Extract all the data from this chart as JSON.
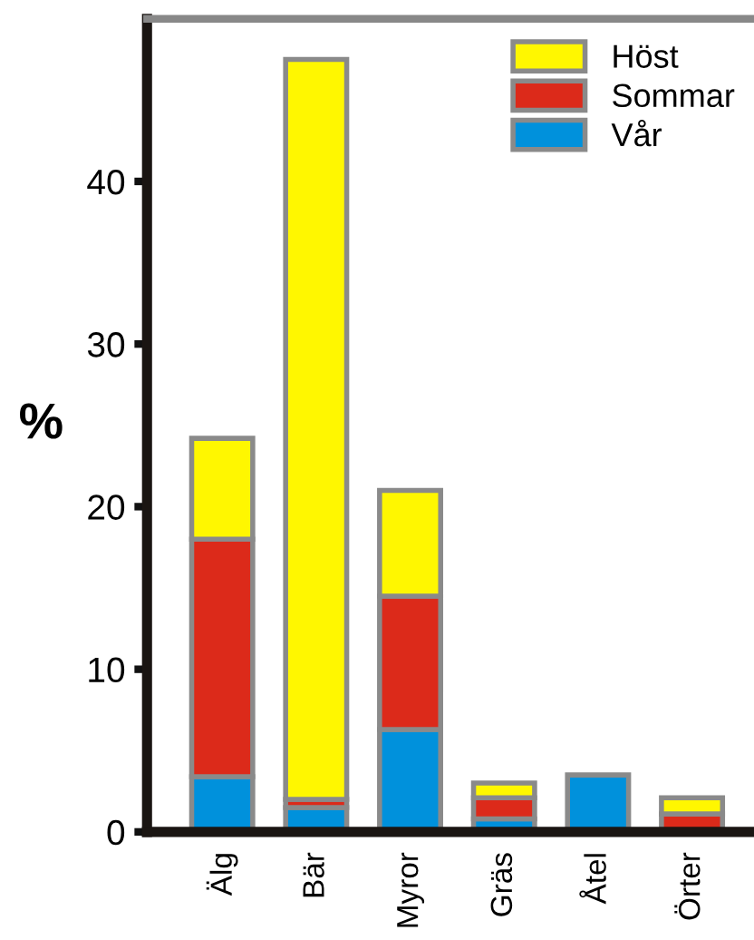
{
  "chart_data": {
    "type": "bar",
    "stacked": true,
    "ylabel": "%",
    "categories": [
      "Älg",
      "Bär",
      "Myror",
      "Gräs",
      "Åtel",
      "Örter"
    ],
    "series": [
      {
        "name": "Vår",
        "color": "#0091dc",
        "values": [
          3.4,
          1.5,
          6.3,
          0.8,
          3.5,
          null
        ]
      },
      {
        "name": "Sommar",
        "color": "#dc2a1a",
        "values": [
          14.6,
          0.5,
          8.2,
          1.3,
          null,
          1.1
        ]
      },
      {
        "name": "Höst",
        "color": "#fff700",
        "values": [
          6.2,
          45.5,
          6.5,
          0.9,
          null,
          1.0
        ]
      }
    ],
    "ylim": [
      0,
      50
    ],
    "yticks": [
      0,
      10,
      20,
      30,
      40
    ],
    "grid": false,
    "legend": "top right"
  }
}
